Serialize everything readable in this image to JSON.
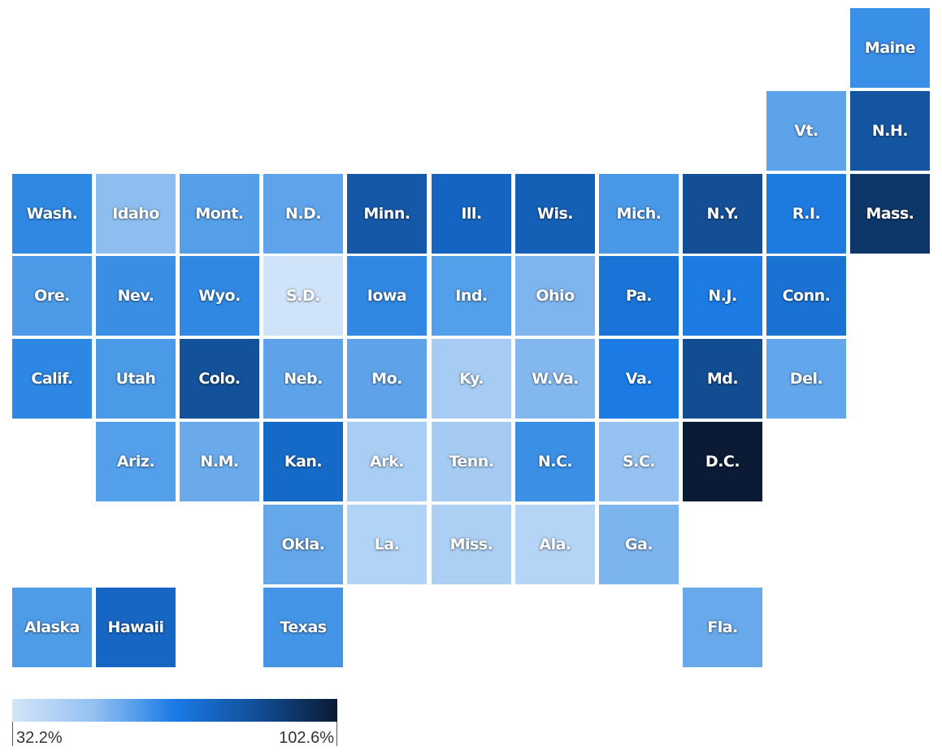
{
  "legend": {
    "min_label": "32.2%",
    "max_label": "102.6%",
    "colors": [
      "#d4e5f9",
      "#93c1f1",
      "#1a7ae6",
      "#124f98",
      "#0a1a33"
    ]
  },
  "states": [
    {
      "label": "Maine",
      "col": 10,
      "row": 0,
      "color": "#3a8fe6"
    },
    {
      "label": "Vt.",
      "col": 9,
      "row": 1,
      "color": "#5ca3ea"
    },
    {
      "label": "N.H.",
      "col": 10,
      "row": 1,
      "color": "#1455a2"
    },
    {
      "label": "Wash.",
      "col": 0,
      "row": 2,
      "color": "#2f89e3"
    },
    {
      "label": "Idaho",
      "col": 1,
      "row": 2,
      "color": "#8ebef0"
    },
    {
      "label": "Mont.",
      "col": 2,
      "row": 2,
      "color": "#559fe9"
    },
    {
      "label": "N.D.",
      "col": 3,
      "row": 2,
      "color": "#5fa4ea"
    },
    {
      "label": "Minn.",
      "col": 4,
      "row": 2,
      "color": "#1658a8"
    },
    {
      "label": "Ill.",
      "col": 5,
      "row": 2,
      "color": "#1664c2"
    },
    {
      "label": "Wis.",
      "col": 6,
      "row": 2,
      "color": "#1560b6"
    },
    {
      "label": "Mich.",
      "col": 7,
      "row": 2,
      "color": "#4898e7"
    },
    {
      "label": "N.Y.",
      "col": 8,
      "row": 2,
      "color": "#144f95"
    },
    {
      "label": "R.I.",
      "col": 9,
      "row": 2,
      "color": "#1d7be0"
    },
    {
      "label": "Mass.",
      "col": 10,
      "row": 2,
      "color": "#0e3769"
    },
    {
      "label": "Ore.",
      "col": 0,
      "row": 3,
      "color": "#4c9ae8"
    },
    {
      "label": "Nev.",
      "col": 1,
      "row": 3,
      "color": "#3a8fe5"
    },
    {
      "label": "Wyo.",
      "col": 2,
      "row": 3,
      "color": "#3088e3"
    },
    {
      "label": "S.D.",
      "col": 3,
      "row": 3,
      "color": "#d0e4f9"
    },
    {
      "label": "Iowa",
      "col": 4,
      "row": 3,
      "color": "#3188e3"
    },
    {
      "label": "Ind.",
      "col": 5,
      "row": 3,
      "color": "#549fe9"
    },
    {
      "label": "Ohio",
      "col": 6,
      "row": 3,
      "color": "#7eb5ee"
    },
    {
      "label": "Pa.",
      "col": 7,
      "row": 3,
      "color": "#1a73d6"
    },
    {
      "label": "N.J.",
      "col": 8,
      "row": 3,
      "color": "#1d7ce3"
    },
    {
      "label": "Conn.",
      "col": 9,
      "row": 3,
      "color": "#1a72d3"
    },
    {
      "label": "Calif.",
      "col": 0,
      "row": 4,
      "color": "#2d87e3"
    },
    {
      "label": "Utah",
      "col": 1,
      "row": 4,
      "color": "#4b9ae8"
    },
    {
      "label": "Colo.",
      "col": 2,
      "row": 4,
      "color": "#13519a"
    },
    {
      "label": "Neb.",
      "col": 3,
      "row": 4,
      "color": "#5ea3ea"
    },
    {
      "label": "Mo.",
      "col": 4,
      "row": 4,
      "color": "#5ea3ea"
    },
    {
      "label": "Ky.",
      "col": 5,
      "row": 4,
      "color": "#a6ccf3"
    },
    {
      "label": "W.Va.",
      "col": 6,
      "row": 4,
      "color": "#83b8ef"
    },
    {
      "label": "Va.",
      "col": 7,
      "row": 4,
      "color": "#1b7ae4"
    },
    {
      "label": "Md.",
      "col": 8,
      "row": 4,
      "color": "#124d92"
    },
    {
      "label": "Del.",
      "col": 9,
      "row": 4,
      "color": "#62a6eb"
    },
    {
      "label": "Ariz.",
      "col": 1,
      "row": 5,
      "color": "#549fe9"
    },
    {
      "label": "N.M.",
      "col": 2,
      "row": 5,
      "color": "#6aaaeb"
    },
    {
      "label": "Kan.",
      "col": 3,
      "row": 5,
      "color": "#166ac7"
    },
    {
      "label": "Ark.",
      "col": 4,
      "row": 5,
      "color": "#a8cef4"
    },
    {
      "label": "Tenn.",
      "col": 5,
      "row": 5,
      "color": "#a5cbf3"
    },
    {
      "label": "N.C.",
      "col": 6,
      "row": 5,
      "color": "#3b90e5"
    },
    {
      "label": "S.C.",
      "col": 7,
      "row": 5,
      "color": "#95c2f1"
    },
    {
      "label": "D.C.",
      "col": 8,
      "row": 5,
      "color": "#0b1b36"
    },
    {
      "label": "Okla.",
      "col": 3,
      "row": 6,
      "color": "#65a8ea"
    },
    {
      "label": "La.",
      "col": 4,
      "row": 6,
      "color": "#b1d3f5"
    },
    {
      "label": "Miss.",
      "col": 5,
      "row": 6,
      "color": "#acd0f4"
    },
    {
      "label": "Ala.",
      "col": 6,
      "row": 6,
      "color": "#b4d5f6"
    },
    {
      "label": "Ga.",
      "col": 7,
      "row": 6,
      "color": "#7cb4ee"
    },
    {
      "label": "Alaska",
      "col": 0,
      "row": 7,
      "color": "#4e9be8"
    },
    {
      "label": "Hawaii",
      "col": 1,
      "row": 7,
      "color": "#1766c4"
    },
    {
      "label": "Texas",
      "col": 3,
      "row": 7,
      "color": "#4495e7"
    },
    {
      "label": "Fla.",
      "col": 8,
      "row": 7,
      "color": "#68a9eb"
    }
  ]
}
